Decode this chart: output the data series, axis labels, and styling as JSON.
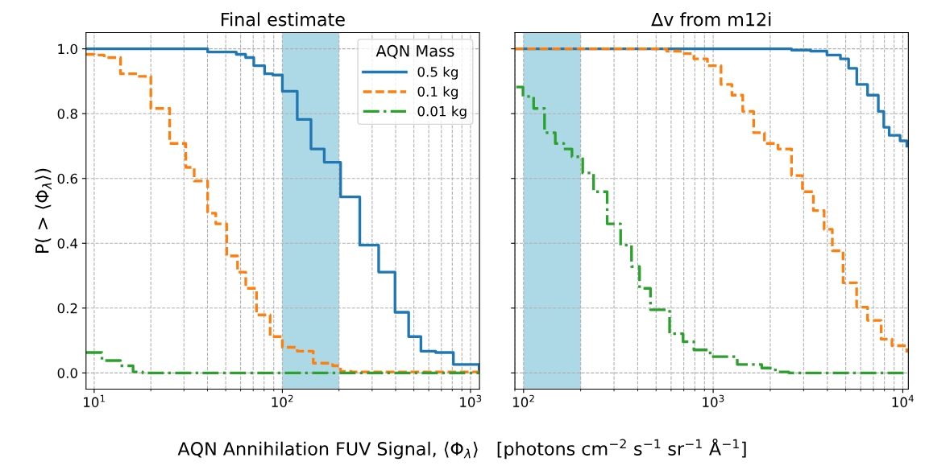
{
  "chart_data": [
    {
      "type": "step",
      "title": "Final estimate",
      "xlabel": "AQN Annihilation FUV Signal, ⟨Φ$_{λ}$⟩   [photons cm$^{−2}$ s$^{−1}$ sr$^{−1}$ Å$^{−1}$]",
      "ylabel": "P( > ⟨Φ$_{λ}$⟩)",
      "log": "x",
      "grid": true,
      "legend": "upper right",
      "legend_title": "AQN Mass",
      "xlim": [
        9.05,
        1116
      ],
      "xticks": [
        {
          "value": 10,
          "label": "10$^{1}$"
        },
        {
          "value": 100,
          "label": "10$^{2}$"
        },
        {
          "value": 1000,
          "label": "10$^{3}$"
        }
      ],
      "ylim": [
        -0.05,
        1.05
      ],
      "yticks": [
        {
          "value": 0,
          "label": "0.0"
        },
        {
          "value": 0.2,
          "label": "0.2"
        },
        {
          "value": 0.4,
          "label": "0.4"
        },
        {
          "value": 0.6,
          "label": "0.6"
        },
        {
          "value": 0.8,
          "label": "0.8"
        },
        {
          "value": 1,
          "label": "1.0"
        }
      ],
      "bands": [
        {
          "axis": "x",
          "from": 100,
          "to": 200,
          "color": "#add8e6"
        }
      ],
      "series": [
        {
          "name": "0.5 kg",
          "color": "#1f77b4",
          "line_style": "solid",
          "x": [
            9.05,
            34.5,
            40.1,
            56.9,
            63.8,
            70.5,
            80.5,
            89,
            100,
            120,
            142,
            167,
            204,
            258,
            325,
            397,
            469,
            545,
            653,
            811,
            973,
            1111
          ],
          "values": [
            1.0,
            1.0,
            0.99,
            0.983,
            0.973,
            0.948,
            0.923,
            0.919,
            0.869,
            0.782,
            0.691,
            0.65,
            0.543,
            0.394,
            0.311,
            0.187,
            0.112,
            0.067,
            0.063,
            0.026,
            0.026,
            0.007
          ]
        },
        {
          "name": "0.1 kg",
          "color": "#ff7f0e",
          "line_style": "dashed",
          "x": [
            9.05,
            10,
            11.3,
            13.8,
            16.9,
            20,
            25.2,
            30.7,
            34,
            40.1,
            44.3,
            50.6,
            57.8,
            63.9,
            72.9,
            86.1,
            100,
            120,
            146,
            185,
            204,
            233,
            1111
          ],
          "values": [
            0.983,
            0.981,
            0.973,
            0.923,
            0.915,
            0.816,
            0.708,
            0.634,
            0.592,
            0.493,
            0.46,
            0.361,
            0.311,
            0.261,
            0.179,
            0.112,
            0.079,
            0.067,
            0.03,
            0.022,
            0.005,
            0.003,
            0.0
          ]
        },
        {
          "name": "0.01 kg",
          "color": "#2ca02c",
          "line_style": "dashdot",
          "x": [
            9.05,
            11,
            13.8,
            16.1,
            18.1,
            1111
          ],
          "values": [
            0.063,
            0.038,
            0.022,
            0.003,
            0.0,
            0.0
          ]
        }
      ]
    },
    {
      "type": "step",
      "title": "Δv from m12i",
      "log": "x",
      "grid": true,
      "tick_labels": "x",
      "xlim": [
        90,
        10700
      ],
      "xticks": [
        {
          "value": 100,
          "label": "10$^{2}$"
        },
        {
          "value": 1000,
          "label": "10$^{3}$"
        },
        {
          "value": 10000,
          "label": "10$^{4}$"
        }
      ],
      "ylim": [
        -0.05,
        1.05
      ],
      "yticks": [
        0,
        0.2,
        0.4,
        0.6,
        0.8,
        1
      ],
      "bands": [
        {
          "axis": "x",
          "from": 100,
          "to": 200,
          "color": "#add8e6"
        }
      ],
      "series": [
        {
          "color": "#1f77b4",
          "line_style": "solid",
          "x": [
            90,
            2128,
            2590,
            3266,
            3980,
            4690,
            5180,
            5720,
            6520,
            7430,
            7940,
            8480,
            9680,
            10500
          ],
          "values": [
            1.0,
            1.0,
            0.996,
            0.993,
            0.981,
            0.969,
            0.94,
            0.89,
            0.857,
            0.807,
            0.758,
            0.733,
            0.716,
            0.7
          ]
        },
        {
          "color": "#ff7f0e",
          "line_style": "dashed",
          "x": [
            90,
            409,
            569,
            671,
            791,
            933,
            1100,
            1256,
            1432,
            1635,
            1864,
            2197,
            2590,
            2956,
            3375,
            3849,
            4250,
            4845,
            5710,
            6520,
            7690,
            8770,
            10500
          ],
          "values": [
            1.0,
            1.0,
            0.993,
            0.985,
            0.969,
            0.948,
            0.89,
            0.857,
            0.807,
            0.741,
            0.708,
            0.691,
            0.609,
            0.559,
            0.501,
            0.443,
            0.377,
            0.278,
            0.203,
            0.162,
            0.104,
            0.084,
            0.063
          ]
        },
        {
          "color": "#2ca02c",
          "line_style": "dashdot",
          "x": [
            91.5,
            99.3,
            113,
            129,
            147,
            163,
            180,
            205,
            234,
            276,
            325,
            371,
            409,
            467,
            589,
            694,
            791,
            964,
            1340,
            1803,
            2128,
            2506,
            10500
          ],
          "values": [
            0.882,
            0.853,
            0.816,
            0.741,
            0.708,
            0.691,
            0.667,
            0.617,
            0.559,
            0.46,
            0.394,
            0.328,
            0.261,
            0.195,
            0.121,
            0.096,
            0.071,
            0.05,
            0.026,
            0.015,
            0.003,
            0.0,
            0.0
          ]
        }
      ]
    }
  ]
}
